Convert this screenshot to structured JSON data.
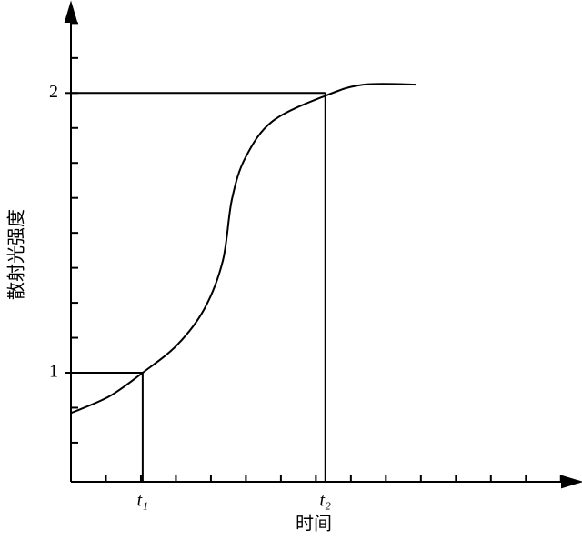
{
  "chart_data": {
    "type": "line",
    "x_label": "时间",
    "y_label": "散射光强度",
    "x": [
      0,
      1.09,
      2.05,
      3.04,
      3.82,
      4.34,
      4.6,
      4.99,
      5.77,
      7.27,
      8.36,
      9.87
    ],
    "values": [
      0.856,
      0.915,
      1.0,
      1.1,
      1.23,
      1.4,
      1.62,
      1.77,
      1.9,
      1.99,
      2.03,
      2.03
    ],
    "color": "#000000",
    "xlim": [
      0,
      14.5
    ],
    "ylim": [
      0.61,
      2.3
    ],
    "xticks": [
      {
        "value": 2.05,
        "label": "t₁"
      },
      {
        "value": 7.27,
        "label": "t₂"
      }
    ],
    "yticks": [
      1,
      2
    ],
    "xminor": [
      1,
      2,
      3,
      4,
      5,
      6,
      7,
      8,
      9,
      10,
      11,
      12,
      13,
      14
    ],
    "yminor": [
      0.75,
      0.875,
      1,
      1.125,
      1.25,
      1.375,
      1.5,
      1.625,
      1.75,
      1.875,
      2,
      2.125,
      2.25
    ]
  }
}
